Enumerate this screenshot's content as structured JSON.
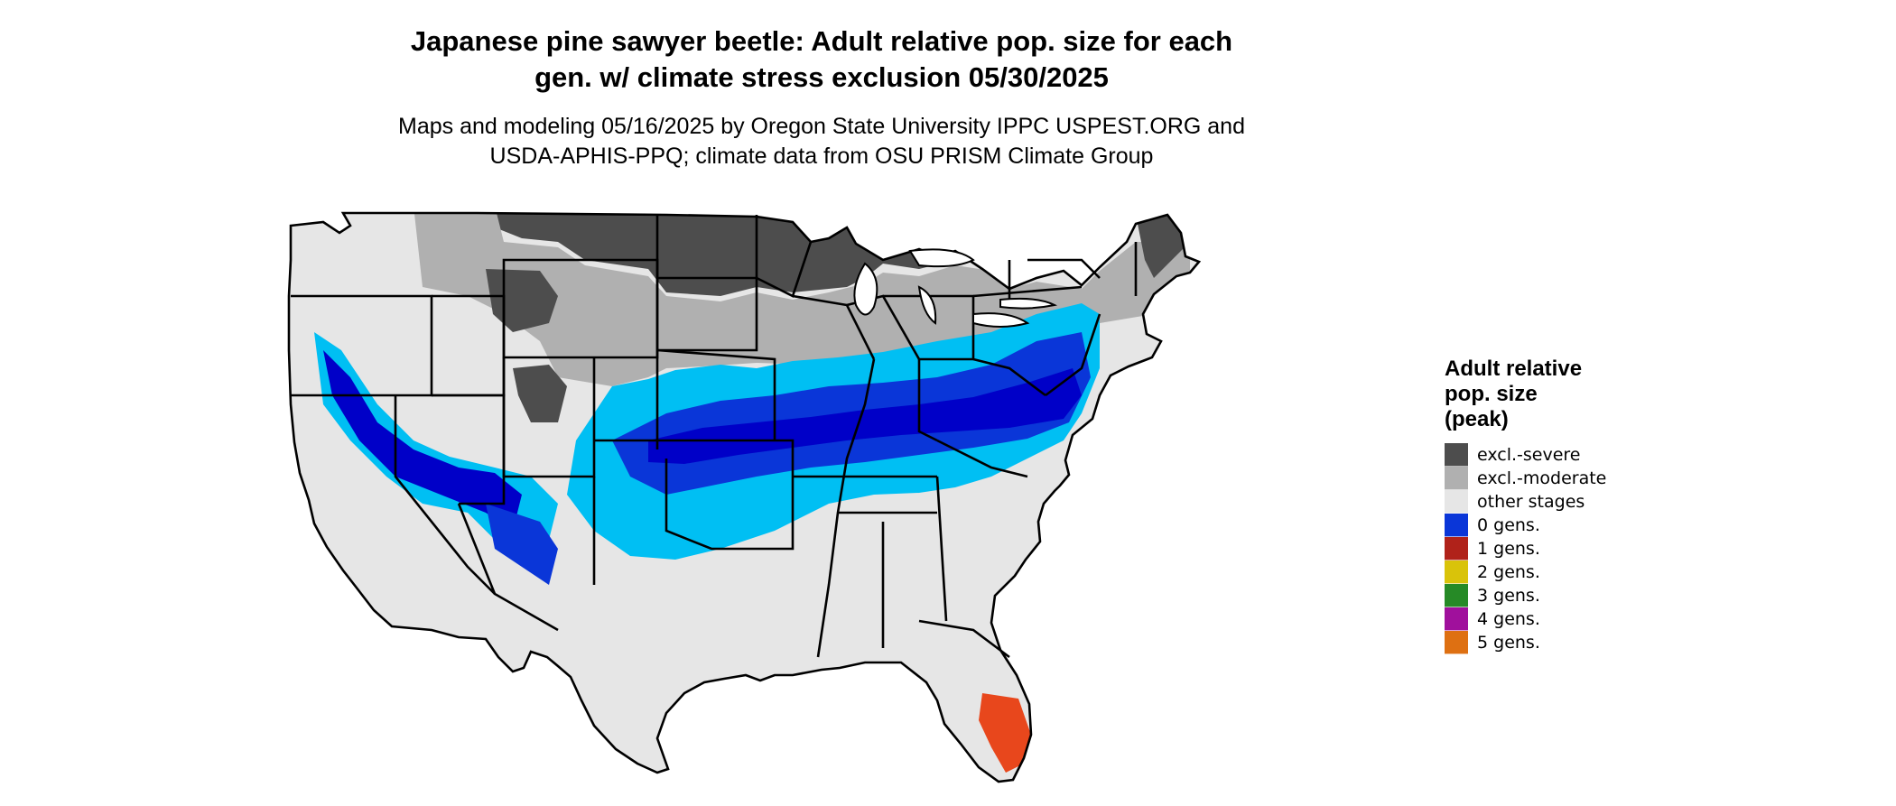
{
  "header": {
    "title_line1": "Japanese pine sawyer beetle: Adult relative pop. size for each",
    "title_line2": "gen. w/ climate stress exclusion 05/30/2025",
    "subtitle_line1": "Maps and modeling 05/16/2025 by Oregon State University IPPC USPEST.ORG and",
    "subtitle_line2": "USDA-APHIS-PPQ; climate data from OSU PRISM Climate Group"
  },
  "legend": {
    "title_line1": "Adult relative",
    "title_line2": "pop. size",
    "title_line3": "(peak)",
    "items": [
      {
        "label": "excl.-severe",
        "color": "#4d4d4d"
      },
      {
        "label": "excl.-moderate",
        "color": "#b0b0b0"
      },
      {
        "label": "other stages",
        "color": "#e6e6e6"
      },
      {
        "label": "0 gens.",
        "color": "#0a36d8"
      },
      {
        "label": "1 gens.",
        "color": "#b0221a"
      },
      {
        "label": "2 gens.",
        "color": "#d9c30a"
      },
      {
        "label": "3 gens.",
        "color": "#268a26"
      },
      {
        "label": "4 gens.",
        "color": "#a0109c"
      },
      {
        "label": "5 gens.",
        "color": "#de7012"
      }
    ]
  },
  "map": {
    "colors": {
      "excl_severe": "#4d4d4d",
      "excl_moderate": "#b0b0b0",
      "other_stages": "#e6e6e6",
      "light_blue": "#00bff3",
      "blue": "#0a36d8",
      "dark_blue": "#0000c8",
      "red_orange": "#e8471c",
      "borders": "#000000"
    }
  }
}
